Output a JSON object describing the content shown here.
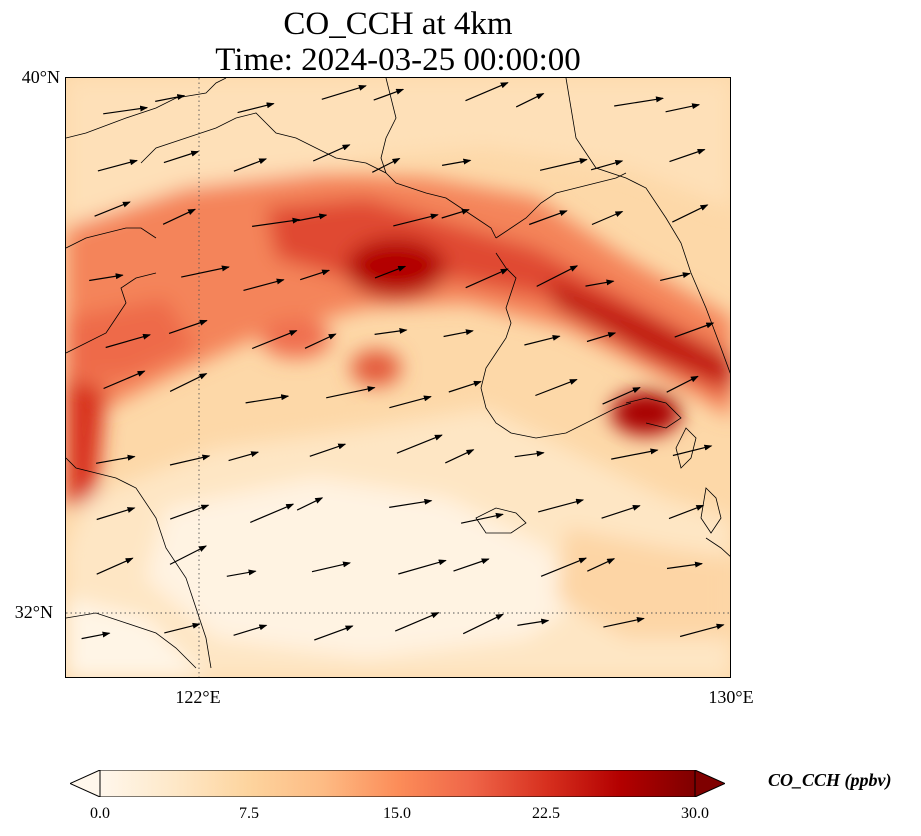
{
  "title": {
    "line1": "CO_CCH at 4km",
    "line2": "Time: 2024-03-25 00:00:00"
  },
  "axes": {
    "lat_labels": [
      "40°N",
      "32°N"
    ],
    "lon_labels": [
      "122°E",
      "130°E"
    ],
    "lon_range": [
      120,
      130
    ],
    "lat_range": [
      31,
      40
    ],
    "gridlines": "dotted"
  },
  "colorbar": {
    "label": "CO_CCH (ppbv)",
    "ticks": [
      "0.0",
      "7.5",
      "15.0",
      "22.5",
      "30.0"
    ],
    "range": [
      0,
      30
    ],
    "colormap": "OrRd",
    "extend": "both",
    "colors": [
      "#fff7ec",
      "#fee8c8",
      "#fdd49e",
      "#fdbb84",
      "#fc8d59",
      "#ef6548",
      "#d7301f",
      "#b30000",
      "#7f0000"
    ]
  },
  "field": {
    "description_colors": {
      "background": "#fdd8a8"
    }
  },
  "wind": {
    "color": "#000000"
  }
}
